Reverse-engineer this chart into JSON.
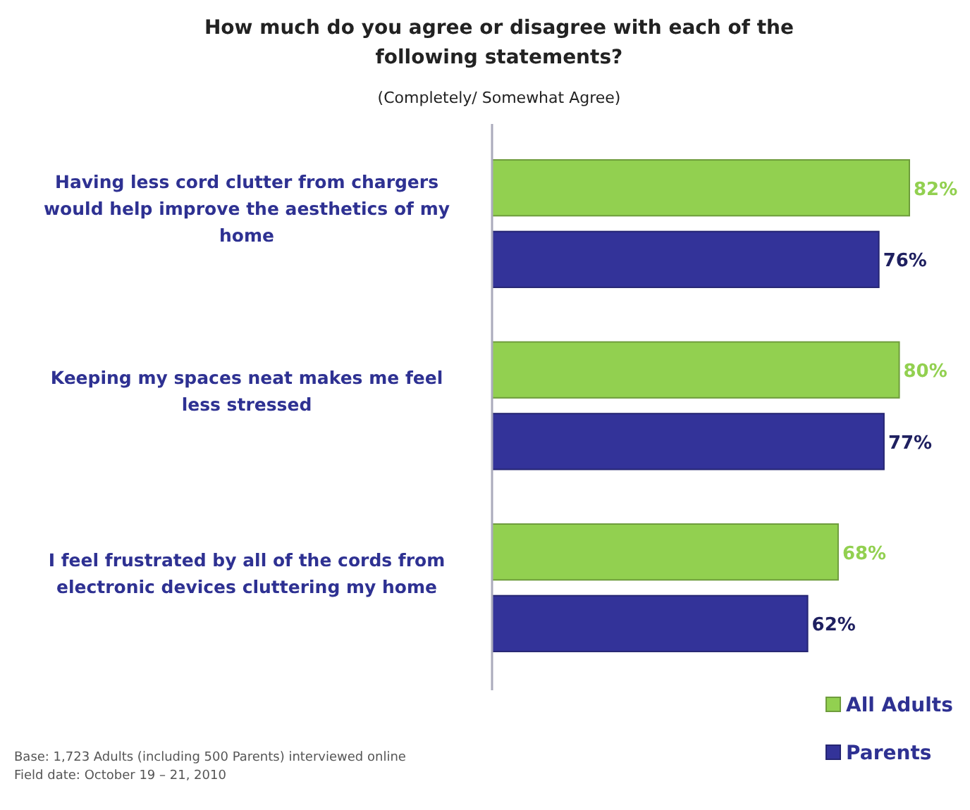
{
  "chart_data": {
    "type": "bar",
    "orientation": "horizontal",
    "title": "How much do you agree or disagree with each of the following statements?",
    "subtitle": "(Completely/ Somewhat Agree)",
    "categories": [
      "Having less cord clutter from chargers would help improve the aesthetics of my home",
      "Keeping my spaces neat makes me feel less stressed",
      "I feel frustrated by all of the cords from electronic devices cluttering my home"
    ],
    "series": [
      {
        "name": "All Adults",
        "color": "#92d050",
        "values": [
          82,
          80,
          68
        ],
        "value_labels": [
          "82%",
          "80%",
          "68%"
        ]
      },
      {
        "name": "Parents",
        "color": "#333399",
        "values": [
          76,
          77,
          62
        ],
        "value_labels": [
          "76%",
          "77%",
          "62%"
        ]
      }
    ],
    "legend": "bottom right",
    "annotations": [
      "Base: 1,723 Adults (including 500 Parents) interviewed online",
      "Field date: October 19 – 21, 2010"
    ]
  }
}
